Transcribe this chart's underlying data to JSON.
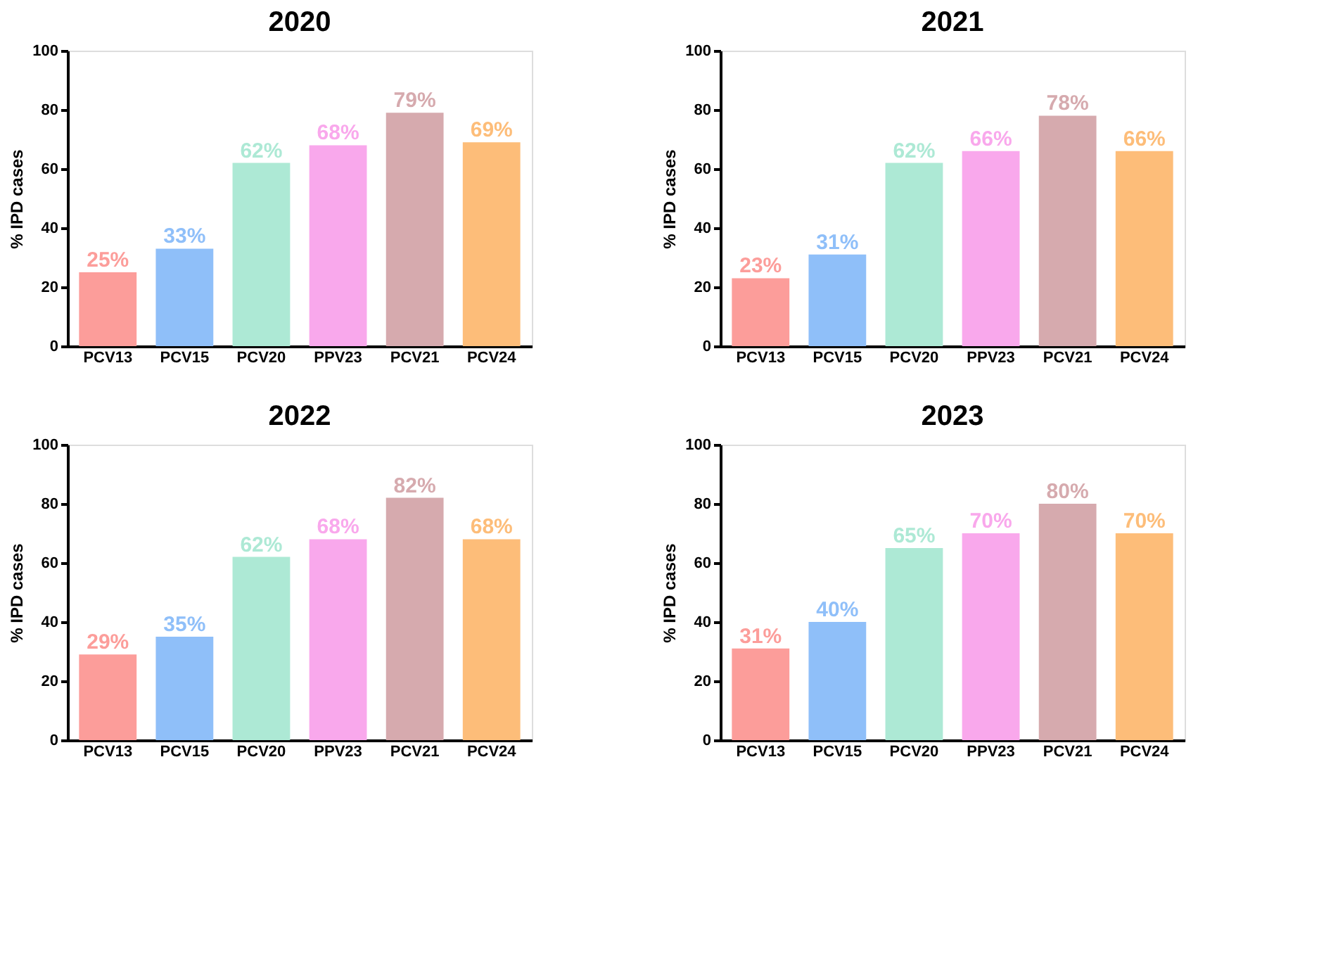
{
  "chart_data": [
    {
      "type": "bar",
      "title": "2020",
      "ylabel": "% IPD cases",
      "categories": [
        "PCV13",
        "PCV15",
        "PCV20",
        "PPV23",
        "PCV21",
        "PCV24"
      ],
      "values": [
        25,
        33,
        62,
        68,
        79,
        69
      ],
      "value_labels": [
        "25%",
        "33%",
        "62%",
        "68%",
        "79%",
        "69%"
      ],
      "colors": [
        "#fc9d9a",
        "#8fbff9",
        "#ade9d5",
        "#f9a8ec",
        "#d6aaae",
        "#fdbd79"
      ],
      "ylim": [
        0,
        100
      ],
      "yticks": [
        0,
        20,
        40,
        60,
        80,
        100
      ],
      "grid": false
    },
    {
      "type": "bar",
      "title": "2021",
      "ylabel": "% IPD cases",
      "categories": [
        "PCV13",
        "PCV15",
        "PCV20",
        "PPV23",
        "PCV21",
        "PCV24"
      ],
      "values": [
        23,
        31,
        62,
        66,
        78,
        66
      ],
      "value_labels": [
        "23%",
        "31%",
        "62%",
        "66%",
        "78%",
        "66%"
      ],
      "colors": [
        "#fc9d9a",
        "#8fbff9",
        "#ade9d5",
        "#f9a8ec",
        "#d6aaae",
        "#fdbd79"
      ],
      "ylim": [
        0,
        100
      ],
      "yticks": [
        0,
        20,
        40,
        60,
        80,
        100
      ],
      "grid": false
    },
    {
      "type": "bar",
      "title": "2022",
      "ylabel": "% IPD cases",
      "categories": [
        "PCV13",
        "PCV15",
        "PCV20",
        "PPV23",
        "PCV21",
        "PCV24"
      ],
      "values": [
        29,
        35,
        62,
        68,
        82,
        68
      ],
      "value_labels": [
        "29%",
        "35%",
        "62%",
        "68%",
        "82%",
        "68%"
      ],
      "colors": [
        "#fc9d9a",
        "#8fbff9",
        "#ade9d5",
        "#f9a8ec",
        "#d6aaae",
        "#fdbd79"
      ],
      "ylim": [
        0,
        100
      ],
      "yticks": [
        0,
        20,
        40,
        60,
        80,
        100
      ],
      "grid": false
    },
    {
      "type": "bar",
      "title": "2023",
      "ylabel": "% IPD cases",
      "categories": [
        "PCV13",
        "PCV15",
        "PCV20",
        "PPV23",
        "PCV21",
        "PCV24"
      ],
      "values": [
        31,
        40,
        65,
        70,
        80,
        70
      ],
      "value_labels": [
        "31%",
        "40%",
        "65%",
        "70%",
        "80%",
        "70%"
      ],
      "colors": [
        "#fc9d9a",
        "#8fbff9",
        "#ade9d5",
        "#f9a8ec",
        "#d6aaae",
        "#fdbd79"
      ],
      "ylim": [
        0,
        100
      ],
      "yticks": [
        0,
        20,
        40,
        60,
        80,
        100
      ],
      "grid": false
    }
  ]
}
